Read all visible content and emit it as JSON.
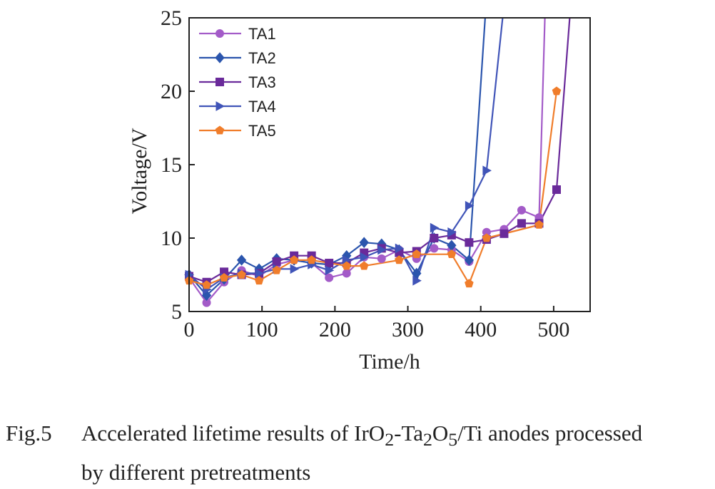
{
  "chart_data": {
    "type": "line",
    "xlabel": "Time/h",
    "ylabel": "Voltage/V",
    "xlim": [
      0,
      550
    ],
    "ylim": [
      5,
      25
    ],
    "xticks": [
      0,
      100,
      200,
      300,
      400,
      500
    ],
    "yticks": [
      5,
      10,
      15,
      20,
      25
    ],
    "grid": false,
    "legend_position": "top-left",
    "series": [
      {
        "name": "TA1",
        "color": "#a35bc8",
        "marker": "circle",
        "points": [
          [
            0,
            7.3
          ],
          [
            24,
            5.6
          ],
          [
            48,
            7.0
          ],
          [
            72,
            7.8
          ],
          [
            96,
            7.4
          ],
          [
            120,
            8.2
          ],
          [
            144,
            8.5
          ],
          [
            168,
            8.3
          ],
          [
            192,
            7.3
          ],
          [
            216,
            7.6
          ],
          [
            240,
            8.7
          ],
          [
            264,
            8.6
          ],
          [
            288,
            9.2
          ],
          [
            312,
            8.6
          ],
          [
            336,
            9.3
          ],
          [
            360,
            9.2
          ],
          [
            384,
            8.4
          ],
          [
            408,
            10.4
          ],
          [
            432,
            10.6
          ],
          [
            456,
            11.9
          ],
          [
            480,
            11.4
          ],
          [
            488,
            25
          ]
        ]
      },
      {
        "name": "TA2",
        "color": "#2b55ad",
        "marker": "diamond",
        "points": [
          [
            0,
            7.5
          ],
          [
            24,
            6.1
          ],
          [
            48,
            7.2
          ],
          [
            72,
            8.5
          ],
          [
            96,
            7.9
          ],
          [
            120,
            8.6
          ],
          [
            144,
            8.5
          ],
          [
            168,
            8.3
          ],
          [
            192,
            8.2
          ],
          [
            216,
            8.8
          ],
          [
            240,
            9.7
          ],
          [
            264,
            9.6
          ],
          [
            288,
            9.2
          ],
          [
            312,
            7.6
          ],
          [
            336,
            10.0
          ],
          [
            360,
            9.5
          ],
          [
            384,
            8.5
          ],
          [
            406,
            25
          ]
        ]
      },
      {
        "name": "TA3",
        "color": "#6a2a9a",
        "marker": "square",
        "points": [
          [
            0,
            7.4
          ],
          [
            24,
            7.0
          ],
          [
            48,
            7.7
          ],
          [
            72,
            7.5
          ],
          [
            96,
            7.6
          ],
          [
            120,
            8.4
          ],
          [
            144,
            8.8
          ],
          [
            168,
            8.8
          ],
          [
            192,
            8.3
          ],
          [
            216,
            8.3
          ],
          [
            240,
            9.0
          ],
          [
            264,
            9.3
          ],
          [
            288,
            9.0
          ],
          [
            312,
            9.1
          ],
          [
            336,
            10.0
          ],
          [
            360,
            10.2
          ],
          [
            384,
            9.7
          ],
          [
            408,
            9.9
          ],
          [
            432,
            10.3
          ],
          [
            456,
            11.0
          ],
          [
            480,
            11.0
          ],
          [
            504,
            13.3
          ],
          [
            522,
            25
          ]
        ]
      },
      {
        "name": "TA4",
        "color": "#4054b8",
        "marker": "triangle-right",
        "points": [
          [
            0,
            7.5
          ],
          [
            24,
            6.5
          ],
          [
            48,
            7.3
          ],
          [
            72,
            7.6
          ],
          [
            96,
            7.6
          ],
          [
            120,
            7.9
          ],
          [
            144,
            7.9
          ],
          [
            168,
            8.2
          ],
          [
            192,
            7.8
          ],
          [
            216,
            8.5
          ],
          [
            240,
            8.7
          ],
          [
            264,
            9.2
          ],
          [
            288,
            9.3
          ],
          [
            312,
            7.1
          ],
          [
            336,
            10.7
          ],
          [
            360,
            10.4
          ],
          [
            384,
            12.2
          ],
          [
            408,
            14.6
          ],
          [
            430,
            25
          ]
        ]
      },
      {
        "name": "TA5",
        "color": "#f07d2b",
        "marker": "pentagon",
        "points": [
          [
            0,
            7.1
          ],
          [
            24,
            6.8
          ],
          [
            48,
            7.3
          ],
          [
            72,
            7.5
          ],
          [
            96,
            7.1
          ],
          [
            120,
            7.8
          ],
          [
            144,
            8.5
          ],
          [
            168,
            8.5
          ],
          [
            216,
            8.1
          ],
          [
            240,
            8.1
          ],
          [
            288,
            8.5
          ],
          [
            312,
            8.9
          ],
          [
            360,
            8.9
          ],
          [
            384,
            6.9
          ],
          [
            408,
            10.0
          ],
          [
            480,
            10.9
          ],
          [
            504,
            20.0
          ]
        ]
      }
    ]
  },
  "caption": {
    "number": "Fig.5",
    "line1_before": "Accelerated lifetime results of IrO",
    "sub_a": "2",
    "dash": "-Ta",
    "sub_b": "2",
    "o": "O",
    "sub_c": "5",
    "line1_after": "/Ti anodes processed",
    "line2": "by different pretreatments"
  }
}
